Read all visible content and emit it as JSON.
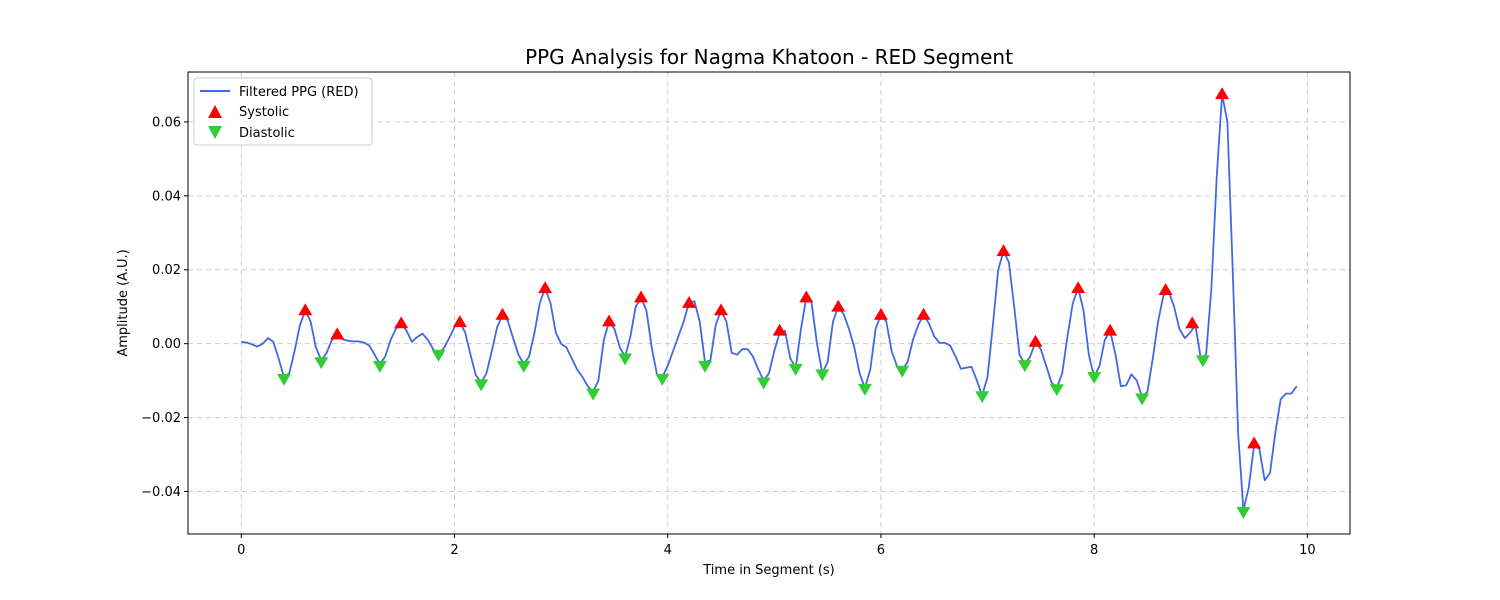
{
  "chart_data": {
    "type": "line",
    "title": "PPG Analysis for Nagma Khatoon - RED Segment",
    "xlabel": "Time in Segment (s)",
    "ylabel": "Amplitude (A.U.)",
    "xlim": [
      -0.5,
      10.4
    ],
    "ylim": [
      -0.0515,
      0.0735
    ],
    "x_ticks": [
      0,
      2,
      4,
      6,
      8,
      10
    ],
    "x_tick_labels": [
      "0",
      "2",
      "4",
      "6",
      "8",
      "10"
    ],
    "y_ticks": [
      -0.04,
      -0.02,
      0.0,
      0.02,
      0.04,
      0.06
    ],
    "y_tick_labels": [
      "−0.04",
      "−0.02",
      "0.00",
      "0.02",
      "0.04",
      "0.06"
    ],
    "grid": true,
    "legend_position": "top-left",
    "colors": {
      "line": "#4169e1",
      "systolic": "#ff0000",
      "diastolic": "#32cd32"
    },
    "series": [
      {
        "name": "Filtered PPG (RED)",
        "kind": "line",
        "points": [
          [
            0.0,
            0.0005
          ],
          [
            0.05,
            0.0003
          ],
          [
            0.1,
            -0.0002
          ],
          [
            0.15,
            -0.0008
          ],
          [
            0.2,
            0.0
          ],
          [
            0.25,
            0.0015
          ],
          [
            0.3,
            0.0005
          ],
          [
            0.35,
            -0.004
          ],
          [
            0.4,
            -0.009
          ],
          [
            0.45,
            -0.008
          ],
          [
            0.5,
            -0.002
          ],
          [
            0.55,
            0.005
          ],
          [
            0.6,
            0.009
          ],
          [
            0.65,
            0.006
          ],
          [
            0.7,
            -0.001
          ],
          [
            0.75,
            -0.0045
          ],
          [
            0.8,
            -0.0025
          ],
          [
            0.85,
            0.001
          ],
          [
            0.9,
            0.0025
          ],
          [
            0.95,
            0.0012
          ],
          [
            1.0,
            0.0008
          ],
          [
            1.05,
            0.0006
          ],
          [
            1.1,
            0.0006
          ],
          [
            1.15,
            0.0003
          ],
          [
            1.2,
            -0.0005
          ],
          [
            1.25,
            -0.003
          ],
          [
            1.3,
            -0.0055
          ],
          [
            1.35,
            -0.0035
          ],
          [
            1.4,
            0.001
          ],
          [
            1.45,
            0.004
          ],
          [
            1.5,
            0.0055
          ],
          [
            1.55,
            0.0035
          ],
          [
            1.6,
            0.0005
          ],
          [
            1.65,
            0.0018
          ],
          [
            1.7,
            0.0027
          ],
          [
            1.75,
            0.001
          ],
          [
            1.8,
            -0.0015
          ],
          [
            1.85,
            -0.0028
          ],
          [
            1.9,
            -0.0012
          ],
          [
            1.95,
            0.0015
          ],
          [
            2.0,
            0.0045
          ],
          [
            2.05,
            0.0058
          ],
          [
            2.1,
            0.003
          ],
          [
            2.15,
            -0.003
          ],
          [
            2.2,
            -0.0085
          ],
          [
            2.25,
            -0.0105
          ],
          [
            2.3,
            -0.008
          ],
          [
            2.35,
            -0.002
          ],
          [
            2.4,
            0.0045
          ],
          [
            2.45,
            0.0078
          ],
          [
            2.5,
            0.0062
          ],
          [
            2.55,
            0.0015
          ],
          [
            2.6,
            -0.003
          ],
          [
            2.65,
            -0.0055
          ],
          [
            2.7,
            -0.0035
          ],
          [
            2.75,
            0.003
          ],
          [
            2.8,
            0.011
          ],
          [
            2.85,
            0.015
          ],
          [
            2.9,
            0.011
          ],
          [
            2.95,
            0.003
          ],
          [
            3.0,
            0.0
          ],
          [
            3.05,
            -0.001
          ],
          [
            3.1,
            -0.004
          ],
          [
            3.15,
            -0.007
          ],
          [
            3.2,
            -0.009
          ],
          [
            3.25,
            -0.0115
          ],
          [
            3.3,
            -0.013
          ],
          [
            3.35,
            -0.01
          ],
          [
            3.4,
            0.001
          ],
          [
            3.45,
            0.006
          ],
          [
            3.5,
            0.004
          ],
          [
            3.55,
            -0.001
          ],
          [
            3.6,
            -0.0035
          ],
          [
            3.65,
            0.002
          ],
          [
            3.7,
            0.01
          ],
          [
            3.75,
            0.0125
          ],
          [
            3.8,
            0.009
          ],
          [
            3.85,
            -0.001
          ],
          [
            3.9,
            -0.0085
          ],
          [
            3.95,
            -0.009
          ],
          [
            4.0,
            -0.006
          ],
          [
            4.05,
            -0.002
          ],
          [
            4.1,
            0.002
          ],
          [
            4.15,
            0.006
          ],
          [
            4.2,
            0.011
          ],
          [
            4.25,
            0.0115
          ],
          [
            4.3,
            0.006
          ],
          [
            4.35,
            -0.005
          ],
          [
            4.4,
            -0.0045
          ],
          [
            4.45,
            0.005
          ],
          [
            4.5,
            0.009
          ],
          [
            4.55,
            0.006
          ],
          [
            4.6,
            -0.0025
          ],
          [
            4.65,
            -0.003
          ],
          [
            4.7,
            -0.0015
          ],
          [
            4.75,
            -0.0015
          ],
          [
            4.8,
            -0.0035
          ],
          [
            4.85,
            -0.007
          ],
          [
            4.9,
            -0.01
          ],
          [
            4.95,
            -0.008
          ],
          [
            5.0,
            -0.002
          ],
          [
            5.05,
            0.003
          ],
          [
            5.1,
            0.0035
          ],
          [
            5.15,
            -0.004
          ],
          [
            5.2,
            -0.0065
          ],
          [
            5.25,
            0.004
          ],
          [
            5.3,
            0.0125
          ],
          [
            5.35,
            0.011
          ],
          [
            5.4,
            0.0
          ],
          [
            5.45,
            -0.008
          ],
          [
            5.5,
            -0.005
          ],
          [
            5.55,
            0.006
          ],
          [
            5.6,
            0.01
          ],
          [
            5.65,
            0.008
          ],
          [
            5.7,
            0.004
          ],
          [
            5.75,
            -0.001
          ],
          [
            5.8,
            -0.008
          ],
          [
            5.85,
            -0.012
          ],
          [
            5.9,
            -0.007
          ],
          [
            5.95,
            0.004
          ],
          [
            6.0,
            0.0078
          ],
          [
            6.05,
            0.006
          ],
          [
            6.1,
            -0.002
          ],
          [
            6.15,
            -0.006
          ],
          [
            6.2,
            -0.007
          ],
          [
            6.25,
            -0.005
          ],
          [
            6.3,
            0.001
          ],
          [
            6.35,
            0.005
          ],
          [
            6.4,
            0.0078
          ],
          [
            6.45,
            0.0055
          ],
          [
            6.5,
            0.002
          ],
          [
            6.55,
            0.0002
          ],
          [
            6.6,
            0.0002
          ],
          [
            6.65,
            -0.0005
          ],
          [
            6.7,
            -0.0035
          ],
          [
            6.75,
            -0.0068
          ],
          [
            6.8,
            -0.0065
          ],
          [
            6.85,
            -0.0063
          ],
          [
            6.9,
            -0.01
          ],
          [
            6.95,
            -0.014
          ],
          [
            7.0,
            -0.009
          ],
          [
            7.05,
            0.005
          ],
          [
            7.1,
            0.02
          ],
          [
            7.15,
            0.025
          ],
          [
            7.2,
            0.022
          ],
          [
            7.25,
            0.01
          ],
          [
            7.3,
            -0.003
          ],
          [
            7.35,
            -0.0055
          ],
          [
            7.4,
            -0.0035
          ],
          [
            7.45,
            0.0005
          ],
          [
            7.5,
            -0.0015
          ],
          [
            7.55,
            -0.006
          ],
          [
            7.6,
            -0.0105
          ],
          [
            7.65,
            -0.012
          ],
          [
            7.7,
            -0.008
          ],
          [
            7.75,
            0.002
          ],
          [
            7.8,
            0.011
          ],
          [
            7.85,
            0.015
          ],
          [
            7.9,
            0.009
          ],
          [
            7.95,
            -0.003
          ],
          [
            8.0,
            -0.009
          ],
          [
            8.05,
            -0.006
          ],
          [
            8.1,
            0.001
          ],
          [
            8.15,
            0.0035
          ],
          [
            8.2,
            -0.003
          ],
          [
            8.25,
            -0.0115
          ],
          [
            8.3,
            -0.0113
          ],
          [
            8.35,
            -0.0083
          ],
          [
            8.4,
            -0.01
          ],
          [
            8.45,
            -0.0145
          ],
          [
            8.5,
            -0.013
          ],
          [
            8.55,
            -0.004
          ],
          [
            8.6,
            0.006
          ],
          [
            8.65,
            0.013
          ],
          [
            8.7,
            0.014
          ],
          [
            8.75,
            0.01
          ],
          [
            8.8,
            0.004
          ],
          [
            8.85,
            0.0015
          ],
          [
            8.9,
            0.003
          ],
          [
            8.95,
            0.005
          ],
          [
            9.0,
            -0.004
          ],
          [
            9.05,
            -0.003
          ],
          [
            9.1,
            0.015
          ],
          [
            9.15,
            0.045
          ],
          [
            9.2,
            0.0675
          ],
          [
            9.25,
            0.06
          ],
          [
            9.3,
            0.02
          ],
          [
            9.35,
            -0.024
          ],
          [
            9.4,
            -0.045
          ],
          [
            9.45,
            -0.039
          ],
          [
            9.5,
            -0.0275
          ],
          [
            9.55,
            -0.0285
          ],
          [
            9.6,
            -0.037
          ],
          [
            9.65,
            -0.035
          ],
          [
            9.7,
            -0.024
          ],
          [
            9.75,
            -0.015
          ],
          [
            9.8,
            -0.0135
          ],
          [
            9.85,
            -0.0135
          ],
          [
            9.9,
            -0.0115
          ]
        ]
      },
      {
        "name": "Systolic",
        "kind": "marker-up",
        "points": [
          [
            0.6,
            0.009
          ],
          [
            0.9,
            0.0025
          ],
          [
            1.5,
            0.0055
          ],
          [
            2.05,
            0.0058
          ],
          [
            2.45,
            0.0078
          ],
          [
            2.85,
            0.015
          ],
          [
            3.45,
            0.006
          ],
          [
            3.75,
            0.0125
          ],
          [
            4.2,
            0.011
          ],
          [
            4.5,
            0.009
          ],
          [
            5.05,
            0.0035
          ],
          [
            5.3,
            0.0125
          ],
          [
            5.6,
            0.01
          ],
          [
            6.0,
            0.0078
          ],
          [
            6.4,
            0.0078
          ],
          [
            7.15,
            0.025
          ],
          [
            7.45,
            0.0005
          ],
          [
            7.85,
            0.015
          ],
          [
            8.15,
            0.0035
          ],
          [
            8.67,
            0.0145
          ],
          [
            8.92,
            0.0055
          ],
          [
            9.2,
            0.0675
          ],
          [
            9.5,
            -0.027
          ]
        ]
      },
      {
        "name": "Diastolic",
        "kind": "marker-down",
        "points": [
          [
            0.4,
            -0.0095
          ],
          [
            0.75,
            -0.005
          ],
          [
            1.3,
            -0.006
          ],
          [
            1.85,
            -0.003
          ],
          [
            2.25,
            -0.011
          ],
          [
            2.65,
            -0.006
          ],
          [
            3.3,
            -0.0135
          ],
          [
            3.6,
            -0.004
          ],
          [
            3.95,
            -0.0095
          ],
          [
            4.35,
            -0.006
          ],
          [
            4.9,
            -0.0105
          ],
          [
            5.2,
            -0.0068
          ],
          [
            5.45,
            -0.0083
          ],
          [
            5.85,
            -0.0122
          ],
          [
            6.2,
            -0.0073
          ],
          [
            6.95,
            -0.0142
          ],
          [
            7.35,
            -0.0058
          ],
          [
            7.65,
            -0.0123
          ],
          [
            8.0,
            -0.009
          ],
          [
            8.45,
            -0.0148
          ],
          [
            9.02,
            -0.0045
          ],
          [
            9.4,
            -0.0455
          ]
        ]
      }
    ]
  }
}
